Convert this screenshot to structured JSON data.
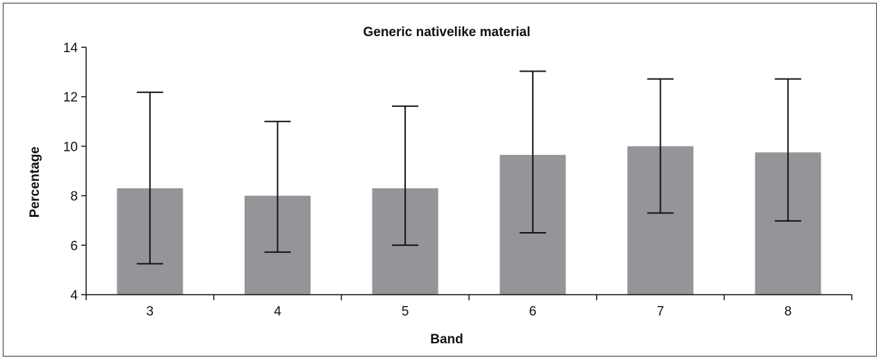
{
  "chart_data": {
    "type": "bar",
    "title": "Generic nativelike material",
    "xlabel": "Band",
    "ylabel": "Percentage",
    "categories": [
      "3",
      "4",
      "5",
      "6",
      "7",
      "8"
    ],
    "values": [
      8.3,
      8.0,
      8.3,
      9.65,
      10.0,
      9.75
    ],
    "error_low": [
      5.25,
      5.72,
      6.0,
      6.5,
      7.3,
      6.98
    ],
    "error_high": [
      12.18,
      11.0,
      11.62,
      13.03,
      12.72,
      12.72
    ],
    "ylim": [
      4,
      14
    ],
    "yticks": [
      "4",
      "6",
      "8",
      "10",
      "12",
      "14"
    ],
    "grid": false,
    "colors": {
      "bar": "#939598",
      "axis": "#111111",
      "error_bar": "#111111"
    }
  }
}
